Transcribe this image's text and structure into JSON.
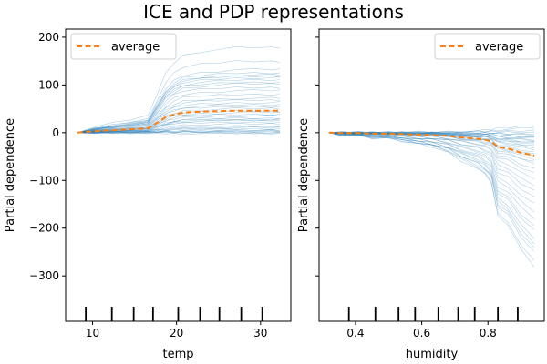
{
  "title": "ICE and PDP representations",
  "colors": {
    "ice": "#1f77b4",
    "average": "#ff7f0e",
    "axis": "#000000"
  },
  "chart_data": [
    {
      "type": "line",
      "xlabel": "temp",
      "ylabel": "Partial dependence",
      "xlim": [
        6.8,
        33.6
      ],
      "ylim": [
        -395,
        217
      ],
      "xticks": [
        10,
        20,
        30
      ],
      "yticks": [
        -300,
        -200,
        -100,
        0,
        100,
        200
      ],
      "ytick_labels": [
        "−300",
        "−200",
        "−100",
        "0",
        "100",
        "200"
      ],
      "legend": {
        "label": "average",
        "position": "top-left"
      },
      "deciles": [
        9.2,
        12.3,
        14.9,
        17.2,
        20.2,
        22.8,
        25.1,
        27.7,
        30.2
      ],
      "grid_x": [
        8.2,
        10.3,
        12.4,
        14.5,
        16.6,
        17.6,
        18.7,
        19.7,
        20.8,
        22.9,
        25.0,
        27.1,
        29.2,
        31.3,
        32.3
      ],
      "average": [
        0,
        3,
        5,
        7,
        9,
        20,
        32,
        38,
        42,
        44,
        45,
        46,
        46,
        46,
        46
      ],
      "ice_start": 0,
      "ice_finals": [
        178,
        150,
        132,
        125,
        121,
        118,
        115,
        110,
        106,
        102,
        95,
        88,
        80,
        72,
        68,
        63,
        58,
        55,
        50,
        45,
        42,
        38,
        35,
        30,
        27,
        25,
        22,
        18,
        14,
        10,
        8,
        4,
        2,
        0,
        -2,
        1,
        3,
        6,
        12,
        28
      ]
    },
    {
      "type": "line",
      "xlabel": "humidity",
      "ylabel": "Partial dependence",
      "xlim": [
        0.29,
        0.97
      ],
      "ylim": [
        -395,
        217
      ],
      "xticks": [
        0.4,
        0.6,
        0.8
      ],
      "xtick_labels": [
        "0.4",
        "0.6",
        "0.8"
      ],
      "yticks": [
        -300,
        -200,
        -100,
        0,
        100,
        200
      ],
      "legend": {
        "label": "average",
        "position": "top-right"
      },
      "deciles": [
        0.38,
        0.46,
        0.53,
        0.58,
        0.65,
        0.71,
        0.76,
        0.83,
        0.89
      ],
      "grid_x": [
        0.32,
        0.36,
        0.41,
        0.45,
        0.5,
        0.54,
        0.59,
        0.63,
        0.68,
        0.72,
        0.77,
        0.79,
        0.81,
        0.83,
        0.86,
        0.9,
        0.94
      ],
      "average": [
        0,
        -1,
        -1,
        -2,
        -2,
        -3,
        -4,
        -5,
        -7,
        -10,
        -13,
        -15,
        -18,
        -30,
        -33,
        -42,
        -48
      ],
      "ice_start": 0,
      "ice_finals": [
        -280,
        -270,
        -250,
        -240,
        -232,
        -220,
        -205,
        -195,
        -180,
        -165,
        -150,
        -135,
        -120,
        -110,
        -95,
        -85,
        -75,
        -65,
        -55,
        -50,
        -45,
        -40,
        -35,
        -30,
        -25,
        -20,
        -18,
        -15,
        -12,
        -10,
        -8,
        -5,
        -2,
        0,
        5,
        10,
        15,
        -22,
        -28,
        -60
      ]
    }
  ]
}
